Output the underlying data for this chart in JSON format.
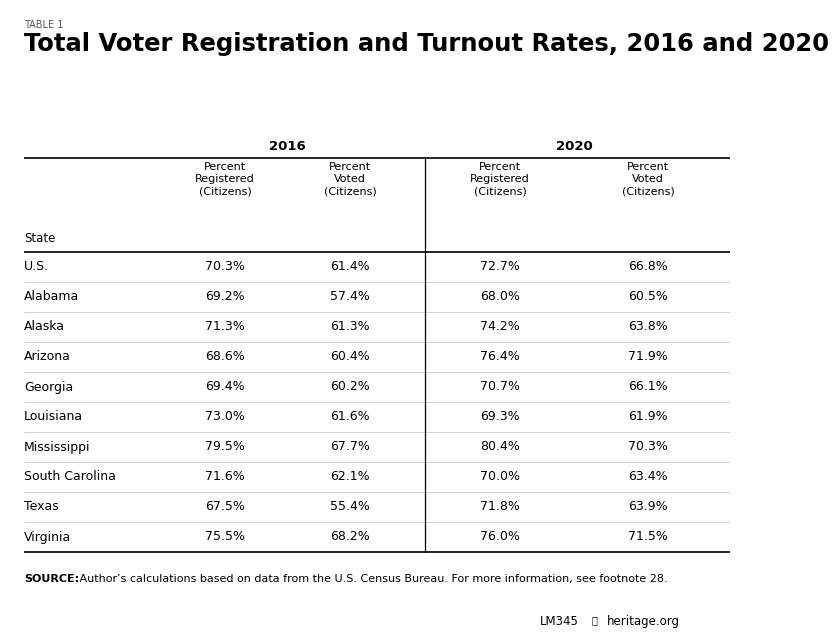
{
  "table_label": "TABLE 1",
  "title": "Total Voter Registration and Turnout Rates, 2016 and 2020",
  "year_headers": [
    "2016",
    "2020"
  ],
  "col_header_state": "State",
  "col_header_reg": "Percent\nRegistered\n(Citizens)",
  "col_header_voted": "Percent\nVoted\n(Citizens)",
  "rows": [
    [
      "U.S.",
      "70.3%",
      "61.4%",
      "72.7%",
      "66.8%"
    ],
    [
      "Alabama",
      "69.2%",
      "57.4%",
      "68.0%",
      "60.5%"
    ],
    [
      "Alaska",
      "71.3%",
      "61.3%",
      "74.2%",
      "63.8%"
    ],
    [
      "Arizona",
      "68.6%",
      "60.4%",
      "76.4%",
      "71.9%"
    ],
    [
      "Georgia",
      "69.4%",
      "60.2%",
      "70.7%",
      "66.1%"
    ],
    [
      "Louisiana",
      "73.0%",
      "61.6%",
      "69.3%",
      "61.9%"
    ],
    [
      "Mississippi",
      "79.5%",
      "67.7%",
      "80.4%",
      "70.3%"
    ],
    [
      "South Carolina",
      "71.6%",
      "62.1%",
      "70.0%",
      "63.4%"
    ],
    [
      "Texas",
      "67.5%",
      "55.4%",
      "71.8%",
      "63.9%"
    ],
    [
      "Virginia",
      "75.5%",
      "68.2%",
      "76.0%",
      "71.5%"
    ]
  ],
  "source_bold": "SOURCE:",
  "source_normal": " Author’s calculations based on data from the U.S. Census Bureau. For more information, see footnote 28.",
  "footer_left": "LM345",
  "footer_right": "heritage.org",
  "bg_color": "#ffffff",
  "text_color": "#000000",
  "separator_color": "#cccccc",
  "line_color": "#000000"
}
